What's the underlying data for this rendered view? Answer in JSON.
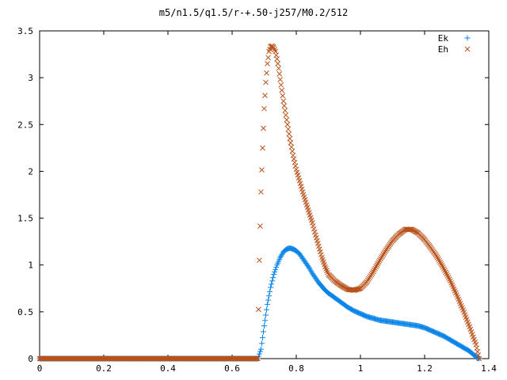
{
  "chart_data": {
    "type": "scatter",
    "title": "m5/n1.5/q1.5/r-+.50-j257/M0.2/512",
    "xlabel": "",
    "ylabel": "",
    "xlim": [
      0,
      1.4
    ],
    "ylim": [
      0,
      3.5
    ],
    "x_ticks": [
      "0",
      "0.2",
      "0.4",
      "0.6",
      "0.8",
      "1",
      "1.2",
      "1.4"
    ],
    "y_ticks": [
      "0",
      "0.5",
      "1",
      "1.5",
      "2",
      "2.5",
      "3",
      "3.5"
    ],
    "grid": false,
    "legend_position": "top-right",
    "series": [
      {
        "name": "Ek",
        "marker": "+",
        "color": "#0a84e8",
        "points": [
          [
            0.0,
            0.0
          ],
          [
            0.68,
            0.0
          ],
          [
            0.69,
            0.1
          ],
          [
            0.7,
            0.35
          ],
          [
            0.71,
            0.58
          ],
          [
            0.72,
            0.76
          ],
          [
            0.73,
            0.9
          ],
          [
            0.74,
            1.0
          ],
          [
            0.75,
            1.08
          ],
          [
            0.76,
            1.14
          ],
          [
            0.77,
            1.17
          ],
          [
            0.78,
            1.18
          ],
          [
            0.79,
            1.17
          ],
          [
            0.8,
            1.15
          ],
          [
            0.81,
            1.12
          ],
          [
            0.82,
            1.07
          ],
          [
            0.83,
            1.02
          ],
          [
            0.84,
            0.97
          ],
          [
            0.85,
            0.91
          ],
          [
            0.86,
            0.86
          ],
          [
            0.87,
            0.81
          ],
          [
            0.88,
            0.77
          ],
          [
            0.89,
            0.73
          ],
          [
            0.9,
            0.7
          ],
          [
            0.92,
            0.65
          ],
          [
            0.94,
            0.6
          ],
          [
            0.96,
            0.55
          ],
          [
            0.98,
            0.51
          ],
          [
            1.0,
            0.48
          ],
          [
            1.02,
            0.45
          ],
          [
            1.04,
            0.43
          ],
          [
            1.06,
            0.41
          ],
          [
            1.08,
            0.4
          ],
          [
            1.1,
            0.39
          ],
          [
            1.12,
            0.38
          ],
          [
            1.14,
            0.37
          ],
          [
            1.16,
            0.36
          ],
          [
            1.18,
            0.35
          ],
          [
            1.2,
            0.33
          ],
          [
            1.22,
            0.3
          ],
          [
            1.24,
            0.27
          ],
          [
            1.26,
            0.24
          ],
          [
            1.28,
            0.2
          ],
          [
            1.3,
            0.16
          ],
          [
            1.32,
            0.12
          ],
          [
            1.34,
            0.08
          ],
          [
            1.35,
            0.05
          ],
          [
            1.36,
            0.02
          ],
          [
            1.37,
            0.0
          ]
        ]
      },
      {
        "name": "Eh",
        "marker": "x",
        "color": "#b8521a",
        "points": [
          [
            0.0,
            0.0
          ],
          [
            0.68,
            0.0
          ],
          [
            0.685,
            1.05
          ],
          [
            0.69,
            1.78
          ],
          [
            0.695,
            2.25
          ],
          [
            0.7,
            2.67
          ],
          [
            0.705,
            2.95
          ],
          [
            0.71,
            3.15
          ],
          [
            0.715,
            3.28
          ],
          [
            0.72,
            3.33
          ],
          [
            0.725,
            3.34
          ],
          [
            0.73,
            3.32
          ],
          [
            0.735,
            3.28
          ],
          [
            0.74,
            3.2
          ],
          [
            0.745,
            3.1
          ],
          [
            0.75,
            2.98
          ],
          [
            0.76,
            2.75
          ],
          [
            0.77,
            2.55
          ],
          [
            0.78,
            2.35
          ],
          [
            0.79,
            2.17
          ],
          [
            0.8,
            2.02
          ],
          [
            0.81,
            1.9
          ],
          [
            0.82,
            1.78
          ],
          [
            0.83,
            1.67
          ],
          [
            0.84,
            1.56
          ],
          [
            0.85,
            1.45
          ],
          [
            0.86,
            1.32
          ],
          [
            0.87,
            1.2
          ],
          [
            0.88,
            1.08
          ],
          [
            0.89,
            0.98
          ],
          [
            0.9,
            0.9
          ],
          [
            0.92,
            0.83
          ],
          [
            0.94,
            0.78
          ],
          [
            0.96,
            0.74
          ],
          [
            0.98,
            0.73
          ],
          [
            1.0,
            0.75
          ],
          [
            1.02,
            0.82
          ],
          [
            1.04,
            0.93
          ],
          [
            1.06,
            1.05
          ],
          [
            1.08,
            1.16
          ],
          [
            1.1,
            1.26
          ],
          [
            1.12,
            1.33
          ],
          [
            1.14,
            1.38
          ],
          [
            1.16,
            1.38
          ],
          [
            1.18,
            1.34
          ],
          [
            1.2,
            1.27
          ],
          [
            1.22,
            1.18
          ],
          [
            1.24,
            1.08
          ],
          [
            1.26,
            0.96
          ],
          [
            1.28,
            0.83
          ],
          [
            1.3,
            0.68
          ],
          [
            1.32,
            0.52
          ],
          [
            1.34,
            0.34
          ],
          [
            1.36,
            0.15
          ],
          [
            1.37,
            0.0
          ]
        ]
      }
    ]
  }
}
